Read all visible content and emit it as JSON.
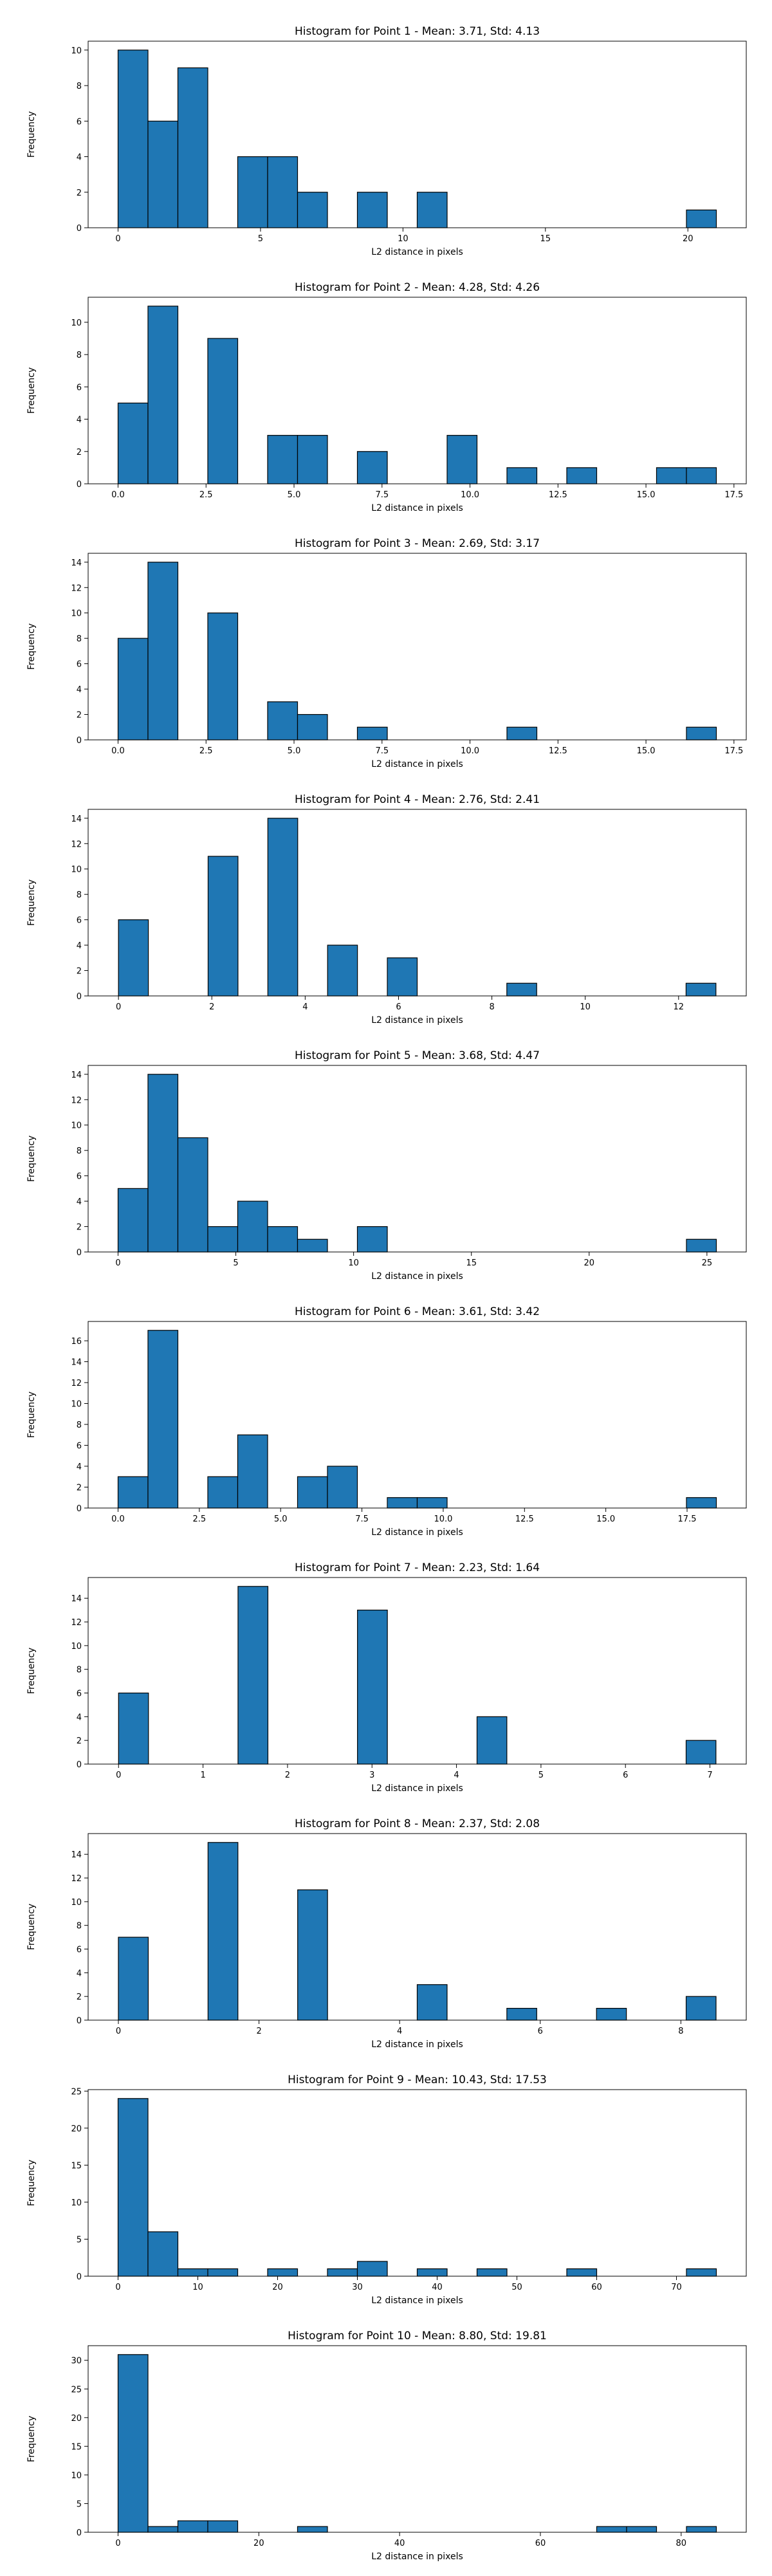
{
  "chart_data": [
    {
      "type": "bar",
      "title": "Histogram for Point 1 - Mean: 3.71, Std: 4.13",
      "xlabel": "L2 distance in pixels",
      "ylabel": "Frequency",
      "bar_color": "#1f77b4",
      "edge_color": "#000000",
      "grid": false,
      "xlim": [
        -1.05,
        22.05
      ],
      "ylim": [
        0,
        10.5
      ],
      "xticks": [
        0,
        5,
        10,
        15,
        20
      ],
      "xtick_labels": [
        "0",
        "5",
        "10",
        "15",
        "20"
      ],
      "yticks": [
        0,
        2,
        4,
        6,
        8,
        10
      ],
      "bin_edges": [
        0,
        1.05,
        2.1,
        3.15,
        4.2,
        5.25,
        6.3,
        7.35,
        8.4,
        9.45,
        10.5,
        11.55,
        12.6,
        13.65,
        14.7,
        15.75,
        16.8,
        17.85,
        18.9,
        19.95,
        21.0
      ],
      "counts": [
        10,
        6,
        9,
        0,
        4,
        4,
        2,
        0,
        2,
        0,
        2,
        0,
        0,
        0,
        0,
        0,
        0,
        0,
        0,
        1
      ]
    },
    {
      "type": "bar",
      "title": "Histogram for Point 2 - Mean: 4.28, Std: 4.26",
      "xlabel": "L2 distance in pixels",
      "ylabel": "Frequency",
      "bar_color": "#1f77b4",
      "edge_color": "#000000",
      "grid": false,
      "xlim": [
        -0.85,
        17.85
      ],
      "ylim": [
        0,
        11.55
      ],
      "xticks": [
        0,
        2.5,
        5,
        7.5,
        10,
        12.5,
        15,
        17.5
      ],
      "xtick_labels": [
        "0.0",
        "2.5",
        "5.0",
        "7.5",
        "10.0",
        "12.5",
        "15.0",
        "17.5"
      ],
      "yticks": [
        0,
        2,
        4,
        6,
        8,
        10
      ],
      "bin_edges": [
        0,
        0.85,
        1.7,
        2.55,
        3.4,
        4.25,
        5.1,
        5.95,
        6.8,
        7.65,
        8.5,
        9.35,
        10.2,
        11.05,
        11.9,
        12.75,
        13.6,
        14.45,
        15.3,
        16.15,
        17.0
      ],
      "counts": [
        5,
        11,
        0,
        9,
        0,
        3,
        3,
        0,
        2,
        0,
        0,
        3,
        0,
        1,
        0,
        1,
        0,
        0,
        1,
        1
      ]
    },
    {
      "type": "bar",
      "title": "Histogram for Point 3 - Mean: 2.69, Std: 3.17",
      "xlabel": "L2 distance in pixels",
      "ylabel": "Frequency",
      "bar_color": "#1f77b4",
      "edge_color": "#000000",
      "grid": false,
      "xlim": [
        -0.85,
        17.85
      ],
      "ylim": [
        0,
        14.7
      ],
      "xticks": [
        0,
        2.5,
        5,
        7.5,
        10,
        12.5,
        15,
        17.5
      ],
      "xtick_labels": [
        "0.0",
        "2.5",
        "5.0",
        "7.5",
        "10.0",
        "12.5",
        "15.0",
        "17.5"
      ],
      "yticks": [
        0,
        2,
        4,
        6,
        8,
        10,
        12,
        14
      ],
      "bin_edges": [
        0,
        0.85,
        1.7,
        2.55,
        3.4,
        4.25,
        5.1,
        5.95,
        6.8,
        7.65,
        8.5,
        9.35,
        10.2,
        11.05,
        11.9,
        12.75,
        13.6,
        14.45,
        15.3,
        16.15,
        17.0
      ],
      "counts": [
        8,
        14,
        0,
        10,
        0,
        3,
        2,
        0,
        1,
        0,
        0,
        0,
        0,
        1,
        0,
        0,
        0,
        0,
        0,
        1
      ]
    },
    {
      "type": "bar",
      "title": "Histogram for Point 4 - Mean: 2.76, Std: 2.41",
      "xlabel": "L2 distance in pixels",
      "ylabel": "Frequency",
      "bar_color": "#1f77b4",
      "edge_color": "#000000",
      "grid": false,
      "xlim": [
        -0.65,
        13.45
      ],
      "ylim": [
        0,
        14.7
      ],
      "xticks": [
        0,
        2,
        4,
        6,
        8,
        10,
        12
      ],
      "xtick_labels": [
        "0",
        "2",
        "4",
        "6",
        "8",
        "10",
        "12"
      ],
      "yticks": [
        0,
        2,
        4,
        6,
        8,
        10,
        12,
        14
      ],
      "bin_edges": [
        0,
        0.64,
        1.28,
        1.92,
        2.56,
        3.2,
        3.84,
        4.48,
        5.12,
        5.76,
        6.4,
        7.04,
        7.68,
        8.32,
        8.96,
        9.6,
        10.24,
        10.88,
        11.52,
        12.16,
        12.8
      ],
      "counts": [
        6,
        0,
        0,
        11,
        0,
        14,
        0,
        4,
        0,
        3,
        0,
        0,
        0,
        1,
        0,
        0,
        0,
        0,
        0,
        1
      ]
    },
    {
      "type": "bar",
      "title": "Histogram for Point 5 - Mean: 3.68, Std: 4.47",
      "xlabel": "L2 distance in pixels",
      "ylabel": "Frequency",
      "bar_color": "#1f77b4",
      "edge_color": "#000000",
      "grid": false,
      "xlim": [
        -1.27,
        26.67
      ],
      "ylim": [
        0,
        14.7
      ],
      "xticks": [
        0,
        5,
        10,
        15,
        20,
        25
      ],
      "xtick_labels": [
        "0",
        "5",
        "10",
        "15",
        "20",
        "25"
      ],
      "yticks": [
        0,
        2,
        4,
        6,
        8,
        10,
        12,
        14
      ],
      "bin_edges": [
        0,
        1.27,
        2.54,
        3.81,
        5.08,
        6.35,
        7.62,
        8.89,
        10.16,
        11.43,
        12.7,
        13.97,
        15.24,
        16.51,
        17.78,
        19.05,
        20.32,
        21.59,
        22.86,
        24.13,
        25.4
      ],
      "counts": [
        5,
        14,
        9,
        2,
        4,
        2,
        1,
        0,
        2,
        0,
        0,
        0,
        0,
        0,
        0,
        0,
        0,
        0,
        0,
        1
      ]
    },
    {
      "type": "bar",
      "title": "Histogram for Point 6 - Mean: 3.61, Std: 3.42",
      "xlabel": "L2 distance in pixels",
      "ylabel": "Frequency",
      "bar_color": "#1f77b4",
      "edge_color": "#000000",
      "grid": false,
      "xlim": [
        -0.92,
        19.32
      ],
      "ylim": [
        0,
        17.85
      ],
      "xticks": [
        0,
        2.5,
        5,
        7.5,
        10,
        12.5,
        15,
        17.5
      ],
      "xtick_labels": [
        "0.0",
        "2.5",
        "5.0",
        "7.5",
        "10.0",
        "12.5",
        "15.0",
        "17.5"
      ],
      "yticks": [
        0,
        2,
        4,
        6,
        8,
        10,
        12,
        14,
        16
      ],
      "bin_edges": [
        0,
        0.92,
        1.84,
        2.76,
        3.68,
        4.6,
        5.52,
        6.44,
        7.36,
        8.28,
        9.2,
        10.12,
        11.04,
        11.96,
        12.88,
        13.8,
        14.72,
        15.64,
        16.56,
        17.48,
        18.4
      ],
      "counts": [
        3,
        17,
        0,
        3,
        7,
        0,
        3,
        4,
        0,
        1,
        1,
        0,
        0,
        0,
        0,
        0,
        0,
        0,
        0,
        1
      ]
    },
    {
      "type": "bar",
      "title": "Histogram for Point 7 - Mean: 2.23, Std: 1.64",
      "xlabel": "L2 distance in pixels",
      "ylabel": "Frequency",
      "bar_color": "#1f77b4",
      "edge_color": "#000000",
      "grid": false,
      "xlim": [
        -0.36,
        7.43
      ],
      "ylim": [
        0,
        15.75
      ],
      "xticks": [
        0,
        1,
        2,
        3,
        4,
        5,
        6,
        7
      ],
      "xtick_labels": [
        "0",
        "1",
        "2",
        "3",
        "4",
        "5",
        "6",
        "7"
      ],
      "yticks": [
        0,
        2,
        4,
        6,
        8,
        10,
        12,
        14
      ],
      "bin_edges": [
        0,
        0.354,
        0.707,
        1.061,
        1.414,
        1.768,
        2.121,
        2.475,
        2.828,
        3.182,
        3.536,
        3.889,
        4.243,
        4.596,
        4.95,
        5.303,
        5.657,
        6.01,
        6.364,
        6.718,
        7.071
      ],
      "counts": [
        6,
        0,
        0,
        0,
        15,
        0,
        0,
        0,
        13,
        0,
        0,
        0,
        4,
        0,
        0,
        0,
        0,
        0,
        0,
        2
      ]
    },
    {
      "type": "bar",
      "title": "Histogram for Point 8 - Mean: 2.37, Std: 2.08",
      "xlabel": "L2 distance in pixels",
      "ylabel": "Frequency",
      "bar_color": "#1f77b4",
      "edge_color": "#000000",
      "grid": false,
      "xlim": [
        -0.43,
        8.93
      ],
      "ylim": [
        0,
        15.75
      ],
      "xticks": [
        0,
        2,
        4,
        6,
        8
      ],
      "xtick_labels": [
        "0",
        "2",
        "4",
        "6",
        "8"
      ],
      "yticks": [
        0,
        2,
        4,
        6,
        8,
        10,
        12,
        14
      ],
      "bin_edges": [
        0,
        0.425,
        0.85,
        1.275,
        1.7,
        2.125,
        2.55,
        2.975,
        3.4,
        3.825,
        4.25,
        4.675,
        5.1,
        5.525,
        5.95,
        6.375,
        6.8,
        7.225,
        7.65,
        8.075,
        8.5
      ],
      "counts": [
        7,
        0,
        0,
        15,
        0,
        0,
        11,
        0,
        0,
        0,
        3,
        0,
        0,
        1,
        0,
        0,
        1,
        0,
        0,
        2
      ]
    },
    {
      "type": "bar",
      "title": "Histogram for Point 9 - Mean: 10.43, Std: 17.53",
      "xlabel": "L2 distance in pixels",
      "ylabel": "Frequency",
      "bar_color": "#1f77b4",
      "edge_color": "#000000",
      "grid": false,
      "xlim": [
        -3.75,
        78.75
      ],
      "ylim": [
        0,
        25.2
      ],
      "xticks": [
        0,
        10,
        20,
        30,
        40,
        50,
        60,
        70
      ],
      "xtick_labels": [
        "0",
        "10",
        "20",
        "30",
        "40",
        "50",
        "60",
        "70"
      ],
      "yticks": [
        0,
        5,
        10,
        15,
        20,
        25
      ],
      "bin_edges": [
        0,
        3.75,
        7.5,
        11.25,
        15,
        18.75,
        22.5,
        26.25,
        30,
        33.75,
        37.5,
        41.25,
        45,
        48.75,
        52.5,
        56.25,
        60,
        63.75,
        67.5,
        71.25,
        75
      ],
      "counts": [
        24,
        6,
        1,
        1,
        0,
        1,
        0,
        1,
        2,
        0,
        1,
        0,
        1,
        0,
        0,
        1,
        0,
        0,
        0,
        1
      ]
    },
    {
      "type": "bar",
      "title": "Histogram for Point 10 - Mean: 8.80, Std: 19.81",
      "xlabel": "L2 distance in pixels",
      "ylabel": "Frequency",
      "bar_color": "#1f77b4",
      "edge_color": "#000000",
      "grid": false,
      "xlim": [
        -4.25,
        89.25
      ],
      "ylim": [
        0,
        32.55
      ],
      "xticks": [
        0,
        20,
        40,
        60,
        80
      ],
      "xtick_labels": [
        "0",
        "20",
        "40",
        "60",
        "80"
      ],
      "yticks": [
        0,
        5,
        10,
        15,
        20,
        25,
        30
      ],
      "bin_edges": [
        0,
        4.25,
        8.5,
        12.75,
        17,
        21.25,
        25.5,
        29.75,
        34,
        38.25,
        42.5,
        46.75,
        51,
        55.25,
        59.5,
        63.75,
        68,
        72.25,
        76.5,
        80.75,
        85
      ],
      "counts": [
        31,
        1,
        2,
        2,
        0,
        0,
        1,
        0,
        0,
        0,
        0,
        0,
        0,
        0,
        0,
        0,
        1,
        1,
        0,
        1
      ]
    }
  ]
}
